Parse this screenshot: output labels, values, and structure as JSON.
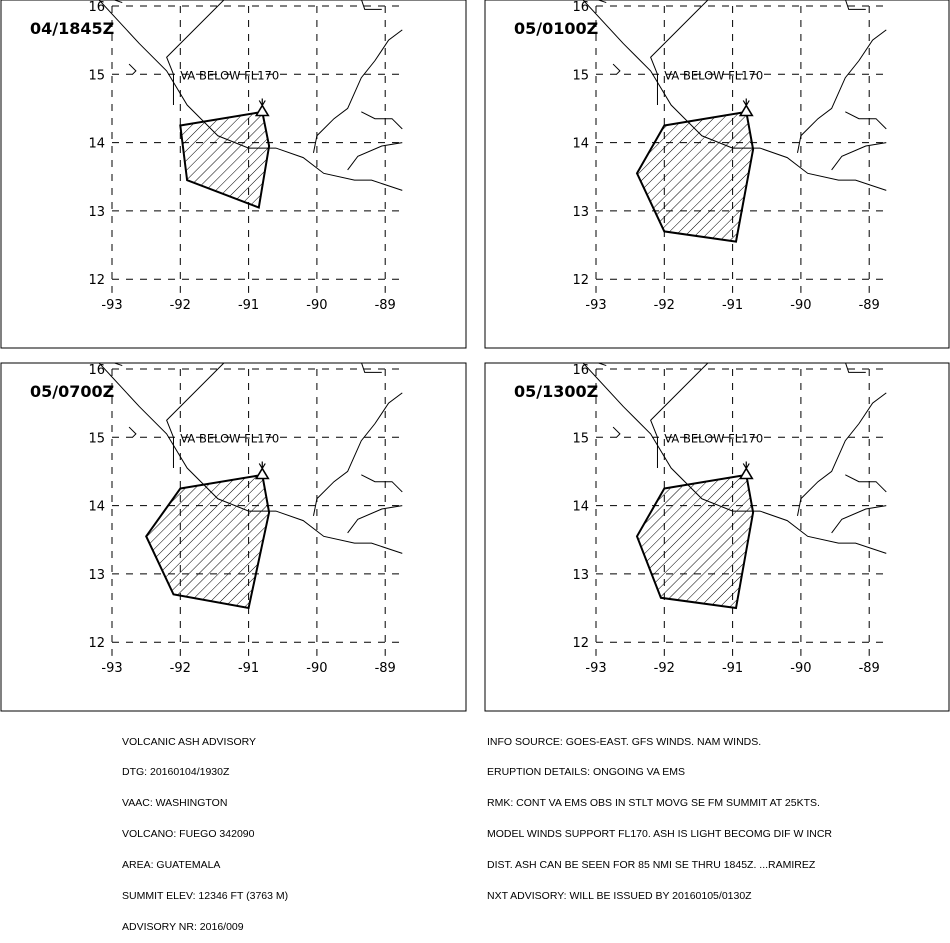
{
  "panels": [
    {
      "time": "04/1845Z",
      "label": "VA BELOW FL170",
      "polygon": [
        [
          -92.0,
          14.25
        ],
        [
          -90.8,
          14.45
        ],
        [
          -90.7,
          13.95
        ],
        [
          -90.85,
          13.05
        ],
        [
          -91.9,
          13.45
        ]
      ]
    },
    {
      "time": "05/0100Z",
      "label": "VA BELOW FL170",
      "polygon": [
        [
          -92.0,
          14.25
        ],
        [
          -90.8,
          14.45
        ],
        [
          -90.7,
          13.9
        ],
        [
          -90.95,
          12.55
        ],
        [
          -92.0,
          12.7
        ],
        [
          -92.4,
          13.55
        ]
      ]
    },
    {
      "time": "05/0700Z",
      "label": "VA BELOW FL170",
      "polygon": [
        [
          -92.0,
          14.25
        ],
        [
          -90.8,
          14.45
        ],
        [
          -90.7,
          13.9
        ],
        [
          -91.0,
          12.5
        ],
        [
          -92.1,
          12.7
        ],
        [
          -92.5,
          13.55
        ]
      ]
    },
    {
      "time": "05/1300Z",
      "label": "VA BELOW FL170",
      "polygon": [
        [
          -92.0,
          14.25
        ],
        [
          -90.8,
          14.45
        ],
        [
          -90.7,
          13.9
        ],
        [
          -90.95,
          12.5
        ],
        [
          -92.05,
          12.65
        ],
        [
          -92.4,
          13.55
        ]
      ]
    }
  ],
  "axes": {
    "lon_ticks": [
      "-93",
      "-92",
      "-91",
      "-90",
      "-89"
    ],
    "lat_ticks": [
      "16",
      "15",
      "14",
      "13",
      "12"
    ]
  },
  "volcano": {
    "lon": -90.8,
    "lat": 14.47
  },
  "advisory_left": [
    "VOLCANIC ASH ADVISORY",
    "DTG: 20160104/1930Z",
    "VAAC: WASHINGTON",
    "VOLCANO: FUEGO 342090",
    "AREA: GUATEMALA",
    "SUMMIT ELEV: 12346 FT (3763 M)",
    "ADVISORY NR: 2016/009"
  ],
  "advisory_right": [
    "INFO SOURCE: GOES-EAST. GFS WINDS. NAM WINDS.",
    "ERUPTION DETAILS: ONGOING VA EMS",
    "RMK: CONT VA EMS OBS IN STLT MOVG SE FM SUMMIT AT 25KTS.",
    "MODEL WINDS SUPPORT FL170. ASH IS LIGHT BECOMG DIF W INCR",
    "DIST. ASH CAN BE SEEN FOR 85 NMI SE THRU 1845Z. ...RAMIREZ",
    "NXT ADVISORY: WILL BE ISSUED BY 20160105/0130Z"
  ],
  "colors": {
    "line": "#000000",
    "background": "#ffffff"
  }
}
